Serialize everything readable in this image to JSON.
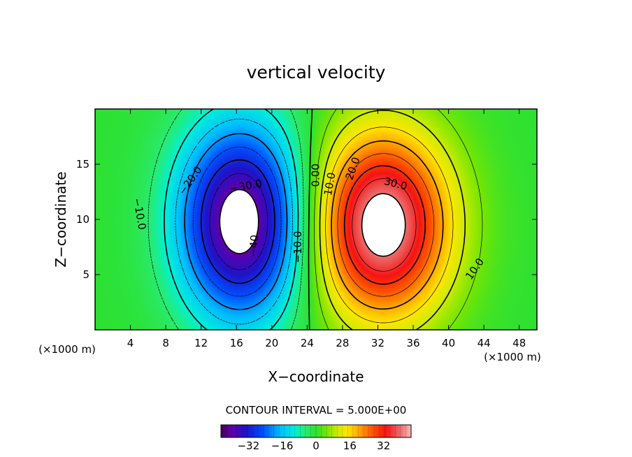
{
  "chart_data": {
    "type": "heatmap",
    "title": "vertical velocity",
    "xlabel": "X−coordinate",
    "ylabel": "Z−coordinate",
    "x_unit_left": "(×1000 m)",
    "x_unit_right": "(×1000 m)",
    "xlim": [
      0,
      50
    ],
    "ylim": [
      0,
      20
    ],
    "x_ticks": [
      4,
      8,
      12,
      16,
      20,
      24,
      28,
      32,
      36,
      40,
      44,
      48
    ],
    "x_tick_labels": [
      "4",
      "8",
      "12",
      "16",
      "20",
      "24",
      "28",
      "32",
      "36",
      "40",
      "44",
      "48"
    ],
    "y_ticks": [
      5,
      10,
      15
    ],
    "y_tick_labels": [
      "5",
      "10",
      "15"
    ],
    "contour_interval_text": "CONTOUR INTERVAL = 5.000E+00",
    "contour_interval": 5,
    "value_range": [
      -45,
      45
    ],
    "field_cells": [
      {
        "name": "downdraft",
        "cx": 16.5,
        "cz": 9.8,
        "amp": -45,
        "sx": 5.0,
        "sz": 6.3
      },
      {
        "name": "updraft",
        "cx": 32.5,
        "cz": 9.5,
        "amp": 45,
        "sx": 5.4,
        "sz": 6.0
      }
    ],
    "contour_labels": [
      {
        "text": "−40",
        "x": 18.0,
        "z": 7.6,
        "rotate": -85
      },
      {
        "text": "−30.0",
        "x": 17.1,
        "z": 13.0,
        "rotate": -10
      },
      {
        "text": "−20.0",
        "x": 10.8,
        "z": 13.5,
        "rotate": -55
      },
      {
        "text": "−10.0",
        "x": 5.0,
        "z": 10.5,
        "rotate": 80
      },
      {
        "text": "−10.0",
        "x": 23.0,
        "z": 7.5,
        "rotate": -90
      },
      {
        "text": "0.00",
        "x": 25.0,
        "z": 14.0,
        "rotate": -90
      },
      {
        "text": "10.0",
        "x": 26.6,
        "z": 13.2,
        "rotate": -80
      },
      {
        "text": "20.0",
        "x": 29.2,
        "z": 14.6,
        "rotate": -70
      },
      {
        "text": "30.0",
        "x": 34.0,
        "z": 13.2,
        "rotate": 15
      },
      {
        "text": "10.0",
        "x": 43.0,
        "z": 5.5,
        "rotate": -55
      }
    ],
    "colorbar": {
      "ticks": [
        -32,
        -16,
        0,
        16,
        32
      ],
      "tick_labels": [
        "−32",
        "−16",
        "0",
        "16",
        "32"
      ],
      "range": [
        -45,
        45
      ]
    }
  }
}
